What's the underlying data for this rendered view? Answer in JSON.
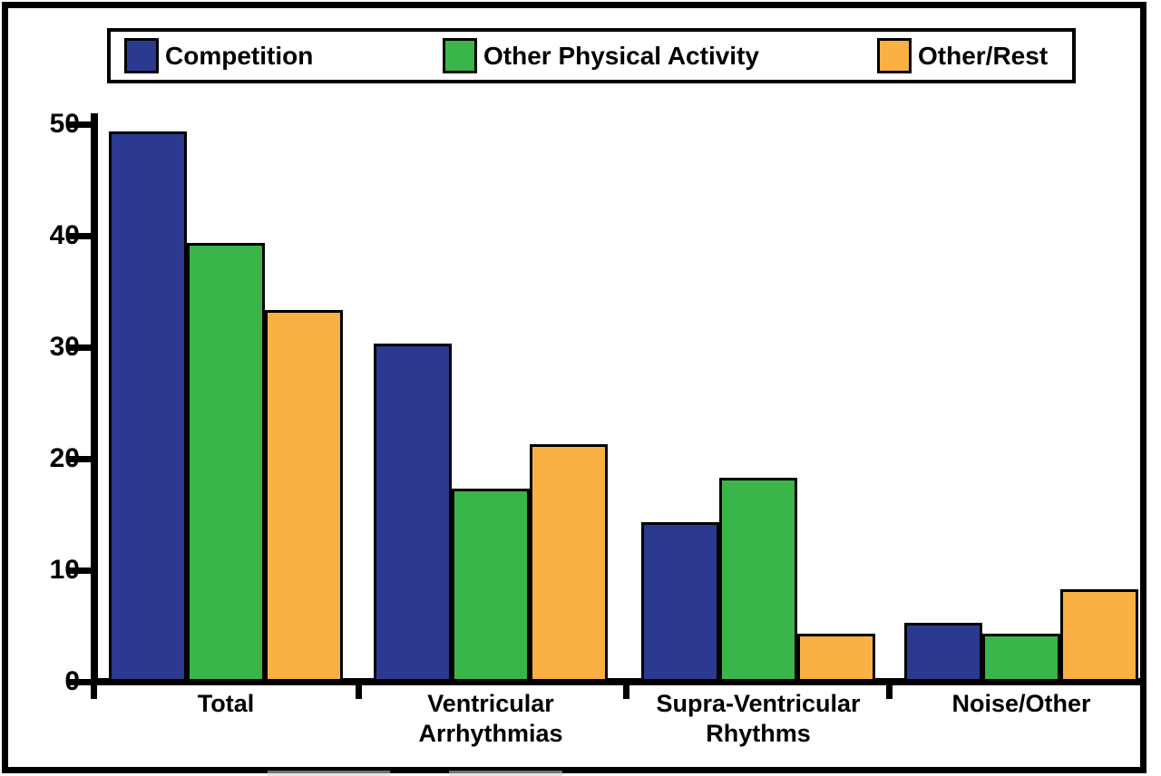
{
  "chart_data": {
    "type": "bar",
    "title": "",
    "categories": [
      "Total",
      "Ventricular\nArrhythmias",
      "Supra-Ventricular\nRhythms",
      "Noise/Other"
    ],
    "series": [
      {
        "name": "Competition",
        "color": "#2B3990",
        "values": [
          49,
          30,
          14,
          5
        ]
      },
      {
        "name": "Other Physical Activity",
        "color": "#39B54A",
        "values": [
          39,
          17,
          18,
          4
        ]
      },
      {
        "name": "Other/Rest",
        "color": "#FBB043",
        "values": [
          33,
          21,
          4,
          8
        ]
      }
    ],
    "xlabel": "",
    "ylabel": "",
    "ylim": [
      0,
      50
    ],
    "yticks": [
      0,
      10,
      20,
      30,
      40,
      50
    ],
    "grid": false,
    "legend_position": "top",
    "axis_color": "#000000",
    "background_color": "#FFFFFF"
  }
}
